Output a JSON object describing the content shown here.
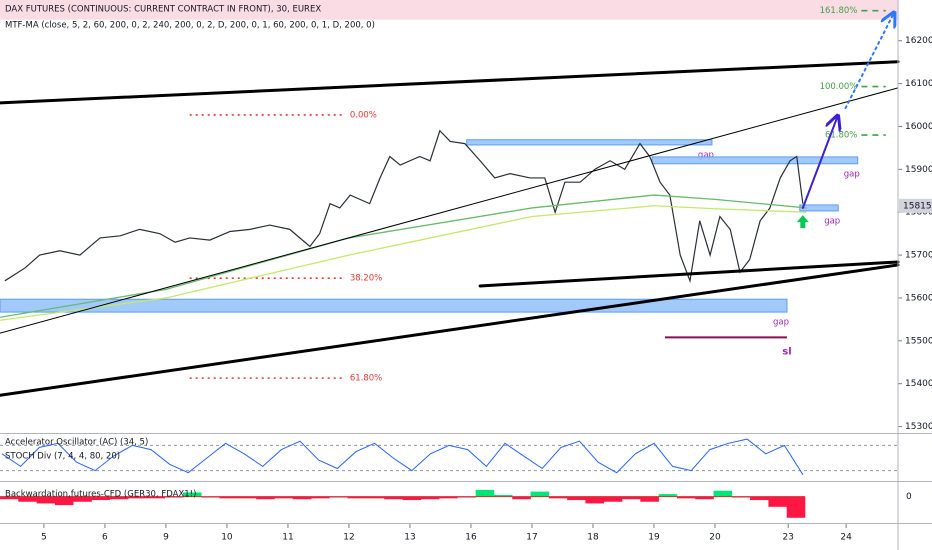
{
  "chart_data": {
    "type": "line",
    "title": "DAX FUTURES (CONTINUOUS: CURRENT CONTRACT IN FRONT), 30, EUREX",
    "subtitle": "MTF-MA (close, 5, 2, 60, 200, 0, 2, 240, 200, 0, 2, D, 200, 0, 1, 60, 200, 0, 1, D, 200, 0)",
    "xlim": [
      -0.72,
      14
    ],
    "ylim": [
      15285,
      16295
    ],
    "xticks": [
      {
        "value": 0,
        "label": "5"
      },
      {
        "value": 1,
        "label": "6"
      },
      {
        "value": 2,
        "label": "9"
      },
      {
        "value": 3,
        "label": "10"
      },
      {
        "value": 4,
        "label": "11"
      },
      {
        "value": 5,
        "label": "12"
      },
      {
        "value": 6,
        "label": "13"
      },
      {
        "value": 7,
        "label": "16"
      },
      {
        "value": 8,
        "label": "17"
      },
      {
        "value": 9,
        "label": "18"
      },
      {
        "value": 10,
        "label": "19"
      },
      {
        "value": 11,
        "label": "20"
      },
      {
        "value": 12.2,
        "label": "23"
      },
      {
        "value": 13.15,
        "label": "24"
      }
    ],
    "yticks": [
      15300,
      15400,
      15500,
      15600,
      15700,
      15800,
      15900,
      16000,
      16100,
      16200
    ],
    "last_price": 15815,
    "series": [
      {
        "color": "#2a2e39",
        "width": 1.2,
        "x": [
          -0.64,
          -0.31,
          -0.07,
          0.26,
          0.59,
          0.92,
          1.25,
          1.57,
          1.9,
          2.15,
          2.39,
          2.72,
          3.05,
          3.38,
          3.7,
          4.03,
          4.36,
          4.52,
          4.69,
          4.85,
          5.02,
          5.34,
          5.51,
          5.67,
          5.84,
          6.16,
          6.33,
          6.49,
          6.66,
          6.9,
          7.15,
          7.39,
          7.64,
          7.97,
          8.21,
          8.38,
          8.54,
          8.79,
          9.03,
          9.28,
          9.52,
          9.77,
          9.93,
          10.1,
          10.26,
          10.43,
          10.59,
          10.75,
          10.92,
          11.08,
          11.25,
          11.41,
          11.57,
          11.74,
          11.9,
          12.07,
          12.23,
          12.34,
          12.44
        ],
        "values": [
          15640,
          15670,
          15700,
          15710,
          15700,
          15740,
          15745,
          15760,
          15750,
          15730,
          15740,
          15735,
          15755,
          15760,
          15770,
          15760,
          15720,
          15750,
          15820,
          15810,
          15840,
          15820,
          15880,
          15930,
          15910,
          15930,
          15920,
          15990,
          15965,
          15960,
          15920,
          15880,
          15890,
          15880,
          15880,
          15800,
          15870,
          15870,
          15900,
          15920,
          15900,
          15960,
          15930,
          15870,
          15840,
          15700,
          15640,
          15780,
          15700,
          15790,
          15760,
          15660,
          15690,
          15780,
          15810,
          15880,
          15920,
          15930,
          15820
        ]
      },
      {
        "color": "#c5e86c",
        "width": 1.3,
        "x": [
          -0.72,
          2,
          5,
          8,
          10,
          11,
          12.5
        ],
        "values": [
          15548,
          15600,
          15700,
          15790,
          15815,
          15808,
          15800
        ]
      },
      {
        "color": "#66bb6a",
        "width": 1.3,
        "x": [
          -0.72,
          2,
          5,
          8,
          10,
          11,
          12.5
        ],
        "values": [
          15555,
          15620,
          15740,
          15810,
          15840,
          15830,
          15810
        ]
      }
    ],
    "zones": [
      {
        "x": [
          -0.72,
          14
        ],
        "y": [
          16296,
          16249
        ],
        "color": "#f9d6e0"
      },
      {
        "x": [
          6.93,
          10.95
        ],
        "y": [
          15969,
          15957
        ],
        "color": "#90bff9",
        "label": "gap"
      },
      {
        "x": [
          9.97,
          13.34
        ],
        "y": [
          15929,
          15913
        ],
        "color": "#90bff9",
        "label": "gap"
      },
      {
        "x": [
          12.39,
          13.02
        ],
        "y": [
          15817,
          15803
        ],
        "color": "#90bff9",
        "label": "gap"
      },
      {
        "x": [
          -0.72,
          12.18
        ],
        "y": [
          15597,
          15567
        ],
        "color": "#90bff9",
        "label": "gap"
      }
    ],
    "stop": {
      "x": [
        10.18,
        12.18
      ],
      "y": 15508,
      "color": "#880e4f",
      "label": "sl"
    },
    "fib_left": {
      "x": [
        2.39,
        4.9
      ],
      "color": "#e53935",
      "levels": [
        {
          "value": 16027,
          "label": "0.00%"
        },
        {
          "value": 15646,
          "label": "38.20%"
        },
        {
          "value": 15413,
          "label": "61.80%"
        }
      ]
    },
    "fib_right": {
      "x": [
        13.4,
        13.8
      ],
      "color": "#43a047",
      "levels": [
        {
          "value": 16270,
          "label": "161.80%"
        },
        {
          "value": 16093,
          "label": "100.00%"
        },
        {
          "value": 15980,
          "label": "61.80%"
        }
      ]
    },
    "drawings": [
      {
        "x": [
          -0.72,
          14
        ],
        "y": [
          16055,
          16151
        ],
        "color": "#000000",
        "width": 3
      },
      {
        "x": [
          -0.72,
          14
        ],
        "y": [
          15518,
          16090
        ],
        "color": "#000000",
        "width": 1
      },
      {
        "x": [
          7.15,
          14
        ],
        "y": [
          15628,
          15684
        ],
        "color": "#000000",
        "width": 3
      },
      {
        "x": [
          -0.72,
          14
        ],
        "y": [
          15373,
          15677
        ],
        "color": "#000000",
        "width": 3
      },
      {
        "x": [
          12.44,
          13.0
        ],
        "y": [
          15810,
          16020
        ],
        "color": "#3d1fd6",
        "width": 2,
        "arrow": true
      },
      {
        "x": [
          13.14,
          13.92
        ],
        "y": [
          16043,
          16261
        ],
        "color": "#2979ff",
        "width": 2,
        "arrow": true,
        "dotted": true
      }
    ],
    "signal": {
      "x": 12.44,
      "y": 15777,
      "color": "#00c853"
    },
    "oscillator": {
      "labels": [
        "Accelerator Oscillator (AC) (34, 5)",
        "STOCH Div (7, 4, 4, 80, 20)"
      ],
      "ylim": [
        0,
        100
      ],
      "levels": [
        80,
        20
      ],
      "color": "#2962ff",
      "values": [
        60,
        30,
        75,
        85,
        40,
        20,
        55,
        80,
        70,
        35,
        15,
        50,
        85,
        60,
        30,
        70,
        90,
        45,
        25,
        65,
        85,
        50,
        20,
        60,
        80,
        70,
        30,
        85,
        55,
        25,
        75,
        90,
        40,
        15,
        60,
        85,
        30,
        20,
        70,
        85,
        95,
        60,
        80,
        10
      ]
    },
    "backwardation": {
      "label": "Backwardation,futures-CFD (GER30, FDAX1!)",
      "ylim": [
        -30,
        15
      ],
      "yticks": [
        0
      ],
      "up_color": "#00e676",
      "down_color": "#ff1744",
      "values": [
        -3,
        -6,
        -8,
        -10,
        -6,
        -4,
        -3,
        -2,
        -2,
        -1,
        5,
        -1,
        -2,
        -2,
        -3,
        -2,
        -3,
        -2,
        -1,
        -2,
        -2,
        -3,
        -4,
        -3,
        -2,
        -1,
        8,
        2,
        -3,
        6,
        -2,
        -4,
        -8,
        -6,
        -3,
        -6,
        3,
        -2,
        -3,
        7,
        -1,
        -4,
        -12,
        -25
      ]
    }
  }
}
